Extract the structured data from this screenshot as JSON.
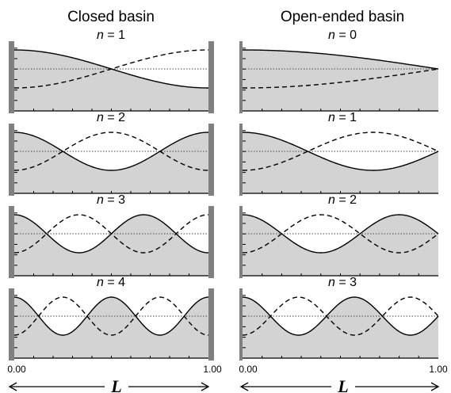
{
  "titles": {
    "closed": "Closed basin",
    "open": "Open-ended basin"
  },
  "mode_label_symbol": "n",
  "mode_label_eq": " = ",
  "closed_modes": [
    1,
    2,
    3,
    4
  ],
  "open_modes": [
    0,
    1,
    2,
    3
  ],
  "axis": {
    "start": "0.00",
    "end": "1.00",
    "length_symbol": "L"
  },
  "colors": {
    "fill": "#d3d3d3",
    "wall": "#808080",
    "line": "#000000"
  }
}
